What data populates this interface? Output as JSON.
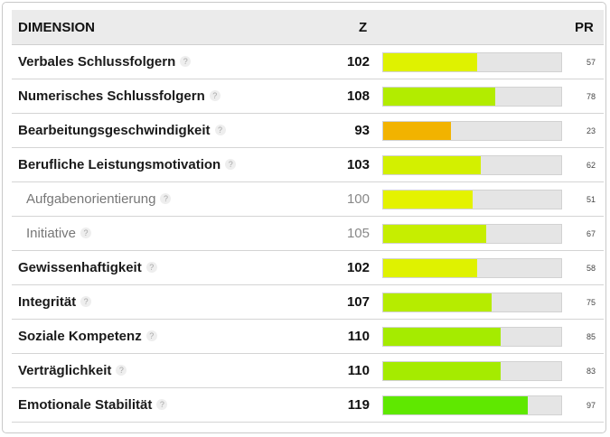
{
  "header": {
    "dimension": "DIMENSION",
    "z": "Z",
    "pr": "PR"
  },
  "help_glyph": "?",
  "rows": [
    {
      "slug": "verbales-schlussfolgern",
      "name": "Verbales Schlussfolgern",
      "z": "102",
      "pr": "57",
      "fill_percent": 53,
      "color": "#dff200",
      "sub": false
    },
    {
      "slug": "numerisches-schlussfolgern",
      "name": "Numerisches Schlussfolgern",
      "z": "108",
      "pr": "78",
      "fill_percent": 63,
      "color": "#b2ec00",
      "sub": false
    },
    {
      "slug": "bearbeitungsgeschwindigkeit",
      "name": "Bearbeitungsgeschwindigkeit",
      "z": "93",
      "pr": "23",
      "fill_percent": 38,
      "color": "#f2b300",
      "sub": false
    },
    {
      "slug": "berufliche-leistungsmotivation",
      "name": "Berufliche Leistungsmotivation",
      "z": "103",
      "pr": "62",
      "fill_percent": 55,
      "color": "#d3f000",
      "sub": false
    },
    {
      "slug": "aufgabenorientierung",
      "name": "Aufgabenorientierung",
      "z": "100",
      "pr": "51",
      "fill_percent": 50,
      "color": "#e4f200",
      "sub": true
    },
    {
      "slug": "initiative",
      "name": "Initiative",
      "z": "105",
      "pr": "67",
      "fill_percent": 58,
      "color": "#c6ee00",
      "sub": true
    },
    {
      "slug": "gewissenhaftigkeit",
      "name": "Gewissenhaftigkeit",
      "z": "102",
      "pr": "58",
      "fill_percent": 53,
      "color": "#dff200",
      "sub": false
    },
    {
      "slug": "integritaet",
      "name": "Integrität",
      "z": "107",
      "pr": "75",
      "fill_percent": 61,
      "color": "#b6ec00",
      "sub": false
    },
    {
      "slug": "soziale-kompetenz",
      "name": "Soziale Kompetenz",
      "z": "110",
      "pr": "85",
      "fill_percent": 66,
      "color": "#a5eb00",
      "sub": false
    },
    {
      "slug": "vertraeglichkeit",
      "name": "Verträglichkeit",
      "z": "110",
      "pr": "83",
      "fill_percent": 66,
      "color": "#a5eb00",
      "sub": false
    },
    {
      "slug": "emotionale-stabilitaet",
      "name": "Emotionale Stabilität",
      "z": "119",
      "pr": "97",
      "fill_percent": 81,
      "color": "#5fe800",
      "sub": false
    }
  ]
}
